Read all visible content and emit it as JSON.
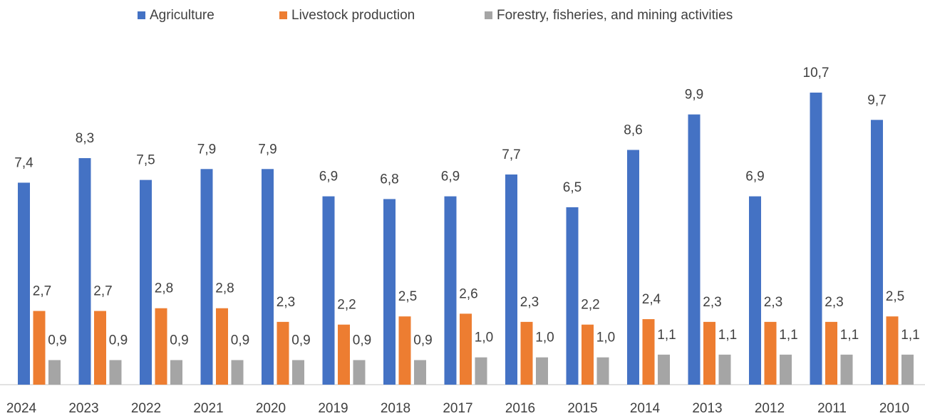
{
  "chart_data": {
    "type": "bar",
    "categories": [
      "2024",
      "2023",
      "2022",
      "2021",
      "2020",
      "2019",
      "2018",
      "2017",
      "2016",
      "2015",
      "2014",
      "2013",
      "2012",
      "2011",
      "2010"
    ],
    "series": [
      {
        "name": "Agriculture",
        "color": "#4472c4",
        "values": [
          7.4,
          8.3,
          7.5,
          7.9,
          7.9,
          6.9,
          6.8,
          6.9,
          7.7,
          6.5,
          8.6,
          9.9,
          6.9,
          10.7,
          9.7
        ],
        "value_labels": [
          "7,4",
          "8,3",
          "7,5",
          "7,9",
          "7,9",
          "6,9",
          "6,8",
          "6,9",
          "7,7",
          "6,5",
          "8,6",
          "9,9",
          "6,9",
          "10,7",
          "9,7"
        ]
      },
      {
        "name": "Livestock production",
        "color": "#ed7d31",
        "values": [
          2.7,
          2.7,
          2.8,
          2.8,
          2.3,
          2.2,
          2.5,
          2.6,
          2.3,
          2.2,
          2.4,
          2.3,
          2.3,
          2.3,
          2.5
        ],
        "value_labels": [
          "2,7",
          "2,7",
          "2,8",
          "2,8",
          "2,3",
          "2,2",
          "2,5",
          "2,6",
          "2,3",
          "2,2",
          "2,4",
          "2,3",
          "2,3",
          "2,3",
          "2,5"
        ]
      },
      {
        "name": "Forestry, fisheries, and mining activities",
        "color": "#a5a5a5",
        "values": [
          0.9,
          0.9,
          0.9,
          0.9,
          0.9,
          0.9,
          0.9,
          1.0,
          1.0,
          1.0,
          1.1,
          1.1,
          1.1,
          1.1,
          1.1
        ],
        "value_labels": [
          "0,9",
          "0,9",
          "0,9",
          "0,9",
          "0,9",
          "0,9",
          "0,9",
          "1,0",
          "1,0",
          "1,0",
          "1,1",
          "1,1",
          "1,1",
          "1,1",
          "1,1"
        ]
      }
    ],
    "legend": "top"
  }
}
